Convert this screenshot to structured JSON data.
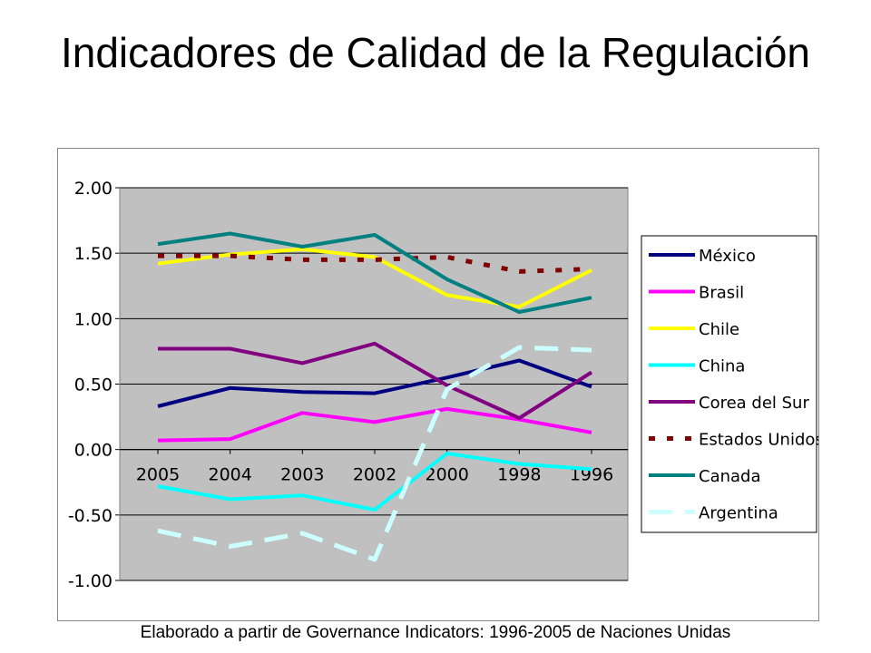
{
  "slide": {
    "title": "Indicadores de Calidad de la Regulación",
    "footer": "Elaborado a partir de Governance Indicators: 1996-2005 de Naciones Unidas"
  },
  "chart_data": {
    "type": "line",
    "title": "",
    "xlabel": "",
    "ylabel": "",
    "categories": [
      "2005",
      "2004",
      "2003",
      "2002",
      "2000",
      "1998",
      "1996"
    ],
    "ylim": [
      -1.0,
      2.0
    ],
    "yticks": [
      "2.00",
      "1.50",
      "1.00",
      "0.50",
      "0.00",
      "-0.50",
      "-1.00"
    ],
    "grid": true,
    "legend_position": "right",
    "series": [
      {
        "name": "México",
        "color": "#000080",
        "dash": "solid",
        "values": [
          0.33,
          0.47,
          0.44,
          0.43,
          0.55,
          0.68,
          0.48
        ]
      },
      {
        "name": "Brasil",
        "color": "#ff00ff",
        "dash": "solid",
        "values": [
          0.07,
          0.08,
          0.28,
          0.21,
          0.31,
          0.23,
          0.13
        ]
      },
      {
        "name": "Chile",
        "color": "#ffff00",
        "dash": "solid",
        "values": [
          1.42,
          1.49,
          1.53,
          1.47,
          1.18,
          1.09,
          1.37
        ]
      },
      {
        "name": "China",
        "color": "#00ffff",
        "dash": "solid",
        "values": [
          -0.28,
          -0.38,
          -0.35,
          -0.46,
          -0.03,
          -0.11,
          -0.15
        ]
      },
      {
        "name": "Corea del Sur",
        "color": "#800080",
        "dash": "solid",
        "values": [
          0.77,
          0.77,
          0.66,
          0.81,
          0.49,
          0.24,
          0.59
        ]
      },
      {
        "name": "Estados Unidos",
        "color": "#800000",
        "dash": "dotted",
        "values": [
          1.48,
          1.48,
          1.45,
          1.45,
          1.47,
          1.36,
          1.38
        ]
      },
      {
        "name": "Canada",
        "color": "#008080",
        "dash": "solid",
        "values": [
          1.57,
          1.65,
          1.55,
          1.64,
          1.3,
          1.05,
          1.16
        ]
      },
      {
        "name": "Argentina",
        "color": "#ccffff",
        "dash": "dashed",
        "values": [
          -0.62,
          -0.74,
          -0.64,
          -0.84,
          0.46,
          0.78,
          0.76
        ]
      }
    ]
  }
}
